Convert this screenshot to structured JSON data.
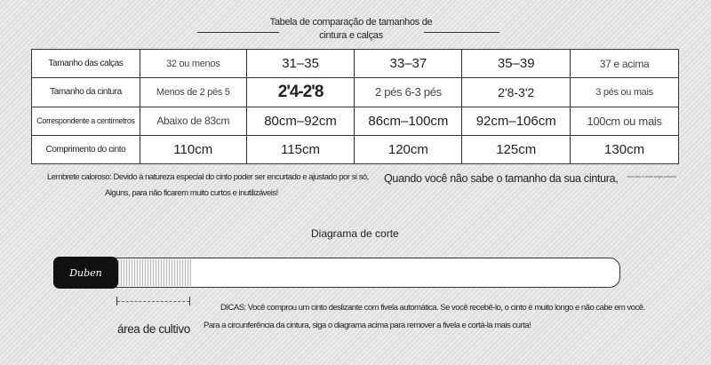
{
  "title": {
    "line1": "Tabela de comparação de tamanhos de",
    "line2": "cintura e calças"
  },
  "table": {
    "rows": [
      {
        "label": "Tamanho das calças",
        "cells": [
          "32 ou menos",
          "31–35",
          "33–37",
          "35–39",
          "37 e acima"
        ]
      },
      {
        "label": "Tamanho da cintura",
        "cells": [
          "Menos de 2 pés 5",
          "2'4-2'8",
          "2 pés 6-3 pés",
          "2'8-3'2",
          "3 pés ou mais"
        ]
      },
      {
        "label": "Correspondente a centímetros",
        "cells": [
          "Abaixo de 83cm",
          "80cm–92cm",
          "86cm–100cm",
          "92cm–106cm",
          "100cm ou mais"
        ]
      },
      {
        "label": "Comprimento do cinto",
        "cells": [
          "110cm",
          "115cm",
          "120cm",
          "125cm",
          "130cm"
        ]
      }
    ]
  },
  "notes": {
    "reminder_line1": "Lembrete caloroso: Devido à natureza especial do cinto poder ser encurtado e ajustado por si só,",
    "question": "Quando você não sabe o tamanho da sua cintura,",
    "tiny": "uma foto o mais longa possível",
    "reminder_line2": "Alguns, para não ficarem muito curtos e inutilizáveis!"
  },
  "diagram": {
    "title": "Diagrama de corte",
    "brand": "Duben",
    "cut_area_label": "área de cultivo",
    "tips_line1": "DICAS: Você comprou um cinto deslizante com fivela automática. Se você recebê-lo, o cinto é muito longo e não cabe em você.",
    "tips_line2": "Para a circunferência da cintura, siga o diagrama acima para remover a fivela e cortá-la mais curta!"
  }
}
